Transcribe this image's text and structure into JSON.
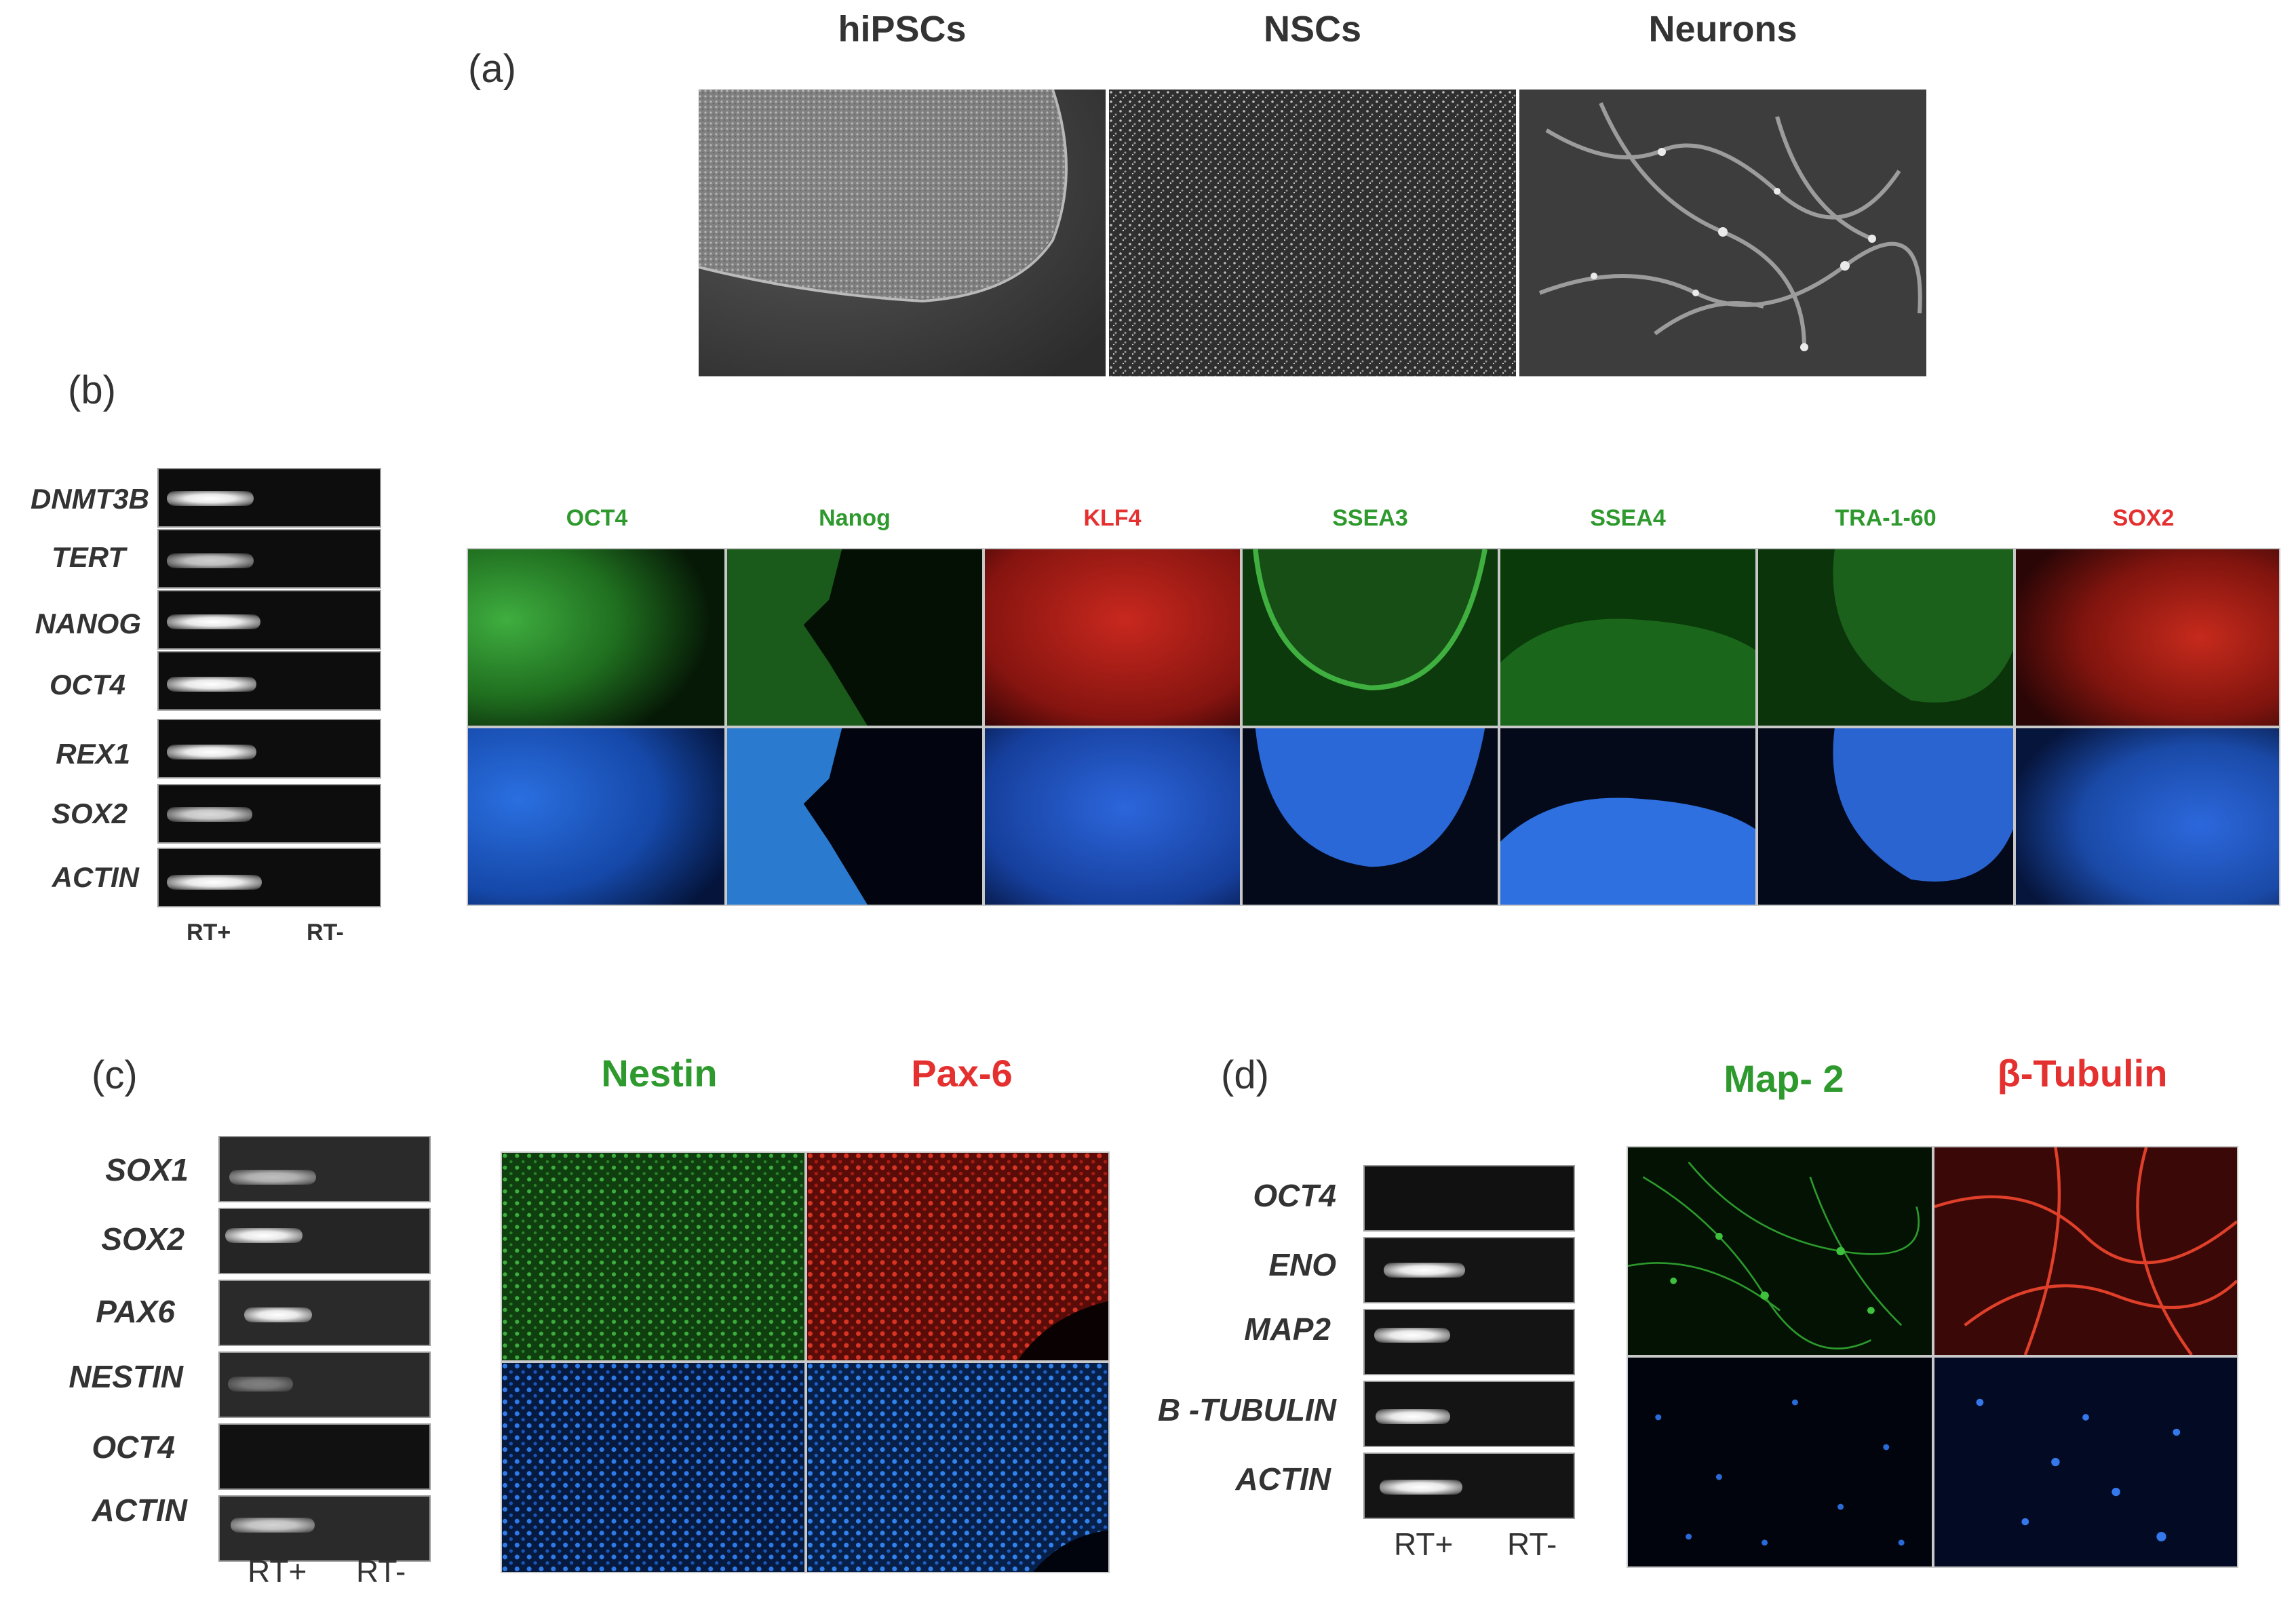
{
  "panel_a": {
    "letter": "(a)",
    "columns": [
      "hiPSCs",
      "NSCs",
      "Neurons"
    ]
  },
  "panel_b": {
    "letter": "(b)",
    "genes": [
      "DNMT3B",
      "TERT",
      "NANOG",
      "OCT4",
      "REX1",
      "SOX2",
      "ACTIN"
    ],
    "lanes": [
      "RT+",
      "RT-"
    ],
    "markers": [
      {
        "label": "OCT4",
        "color": "#2e9a2e"
      },
      {
        "label": "Nanog",
        "color": "#2e9a2e"
      },
      {
        "label": "KLF4",
        "color": "#e53030"
      },
      {
        "label": "SSEA3",
        "color": "#2e9a2e"
      },
      {
        "label": "SSEA4",
        "color": "#2e9a2e"
      },
      {
        "label": "TRA-1-60",
        "color": "#2e9a2e"
      },
      {
        "label": "SOX2",
        "color": "#e53030"
      }
    ]
  },
  "panel_c": {
    "letter": "(c)",
    "genes": [
      "SOX1",
      "SOX2",
      "PAX6",
      "NESTIN",
      "OCT4",
      "ACTIN"
    ],
    "lanes": [
      "RT+",
      "RT-"
    ],
    "markers": [
      {
        "label": "Nestin",
        "color": "#2e9a2e"
      },
      {
        "label": "Pax-6",
        "color": "#e53030"
      }
    ]
  },
  "panel_d": {
    "letter": "(d)",
    "genes": [
      "OCT4",
      "ENO",
      "MAP2",
      "B -TUBULIN",
      "ACTIN"
    ],
    "lanes": [
      "RT+",
      "RT-"
    ],
    "markers": [
      {
        "label": "Map- 2",
        "color": "#2e9a2e"
      },
      {
        "label": "β-Tubulin",
        "color": "#e53030"
      }
    ]
  }
}
